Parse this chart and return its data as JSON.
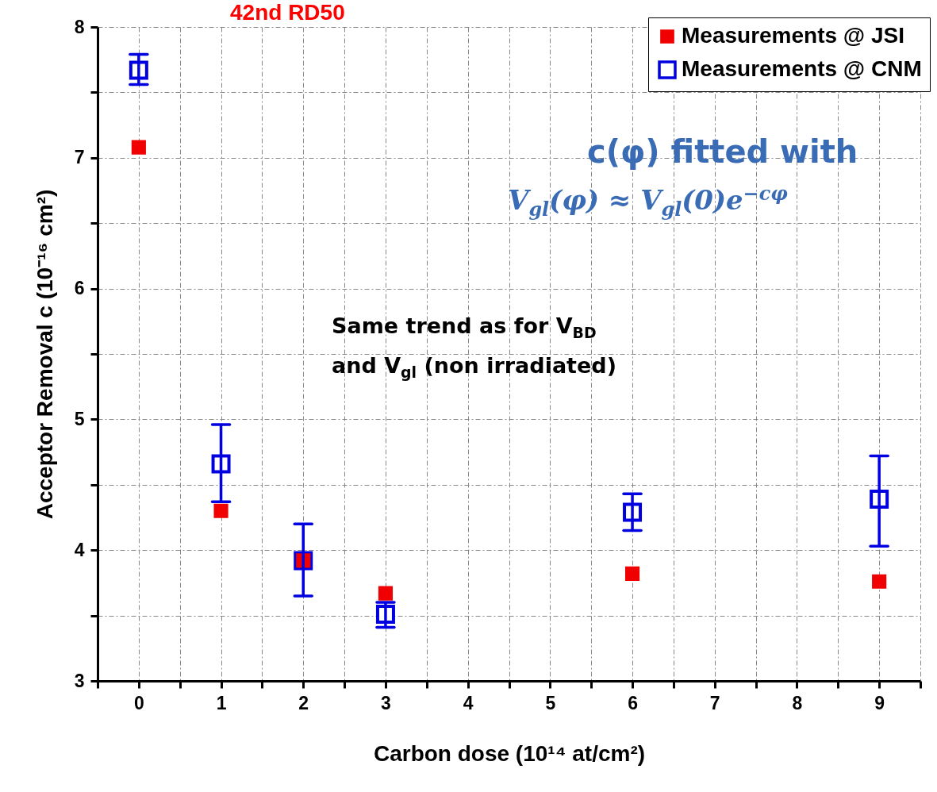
{
  "chart_data": {
    "type": "scatter",
    "xlabel": "Carbon dose (10¹⁴ at/cm²)",
    "ylabel": "Acceptor Removal c (10⁻¹⁶ cm²)",
    "x": [
      0,
      1,
      2,
      3,
      6,
      9
    ],
    "series": [
      {
        "name": "Measurements @ JSI",
        "color": "#f00000",
        "values": [
          7.08,
          4.3,
          3.92,
          3.67,
          3.82,
          3.76
        ]
      },
      {
        "name": "Measurements @ CNM",
        "color": "#0000e0",
        "values": [
          7.67,
          4.66,
          3.92,
          3.51,
          4.29,
          4.39
        ],
        "errors": [
          [
            7.56,
            7.79
          ],
          [
            4.37,
            4.96
          ],
          [
            3.65,
            4.2
          ],
          [
            3.41,
            3.6
          ],
          [
            4.15,
            4.43
          ],
          [
            4.03,
            4.72
          ]
        ]
      }
    ],
    "marker": "square",
    "xlim": [
      -0.5,
      9.5
    ],
    "xticks": [
      {
        "value": -0.5,
        "label": null
      },
      0,
      {
        "value": 0.5,
        "label": null
      },
      1,
      {
        "value": 1.5,
        "label": null
      },
      2,
      {
        "value": 2.5,
        "label": null
      },
      3,
      {
        "value": 3.5,
        "label": null
      },
      4,
      {
        "value": 4.5,
        "label": null
      },
      5,
      {
        "value": 5.5,
        "label": null
      },
      6,
      {
        "value": 6.5,
        "label": null
      },
      7,
      {
        "value": 7.5,
        "label": null
      },
      8,
      {
        "value": 8.5,
        "label": null
      },
      9,
      {
        "value": 9.5,
        "label": null
      }
    ],
    "ylim": [
      3,
      8
    ],
    "yticks": [
      3,
      {
        "value": 3.5,
        "label": null
      },
      4,
      {
        "value": 4.5,
        "label": null
      },
      5,
      {
        "value": 5.5,
        "label": null
      },
      6,
      {
        "value": 6.5,
        "label": null
      },
      7,
      {
        "value": 7.5,
        "label": null
      },
      8
    ],
    "grid": true,
    "legend": "top right",
    "annotations": [
      "42nd RD50",
      "c(φ) fitted with",
      "V$_{gl}$(φ) ≈ V$_{gl}$(0)e$^{−cφ}$",
      "Same trend as for V$_{BD}$",
      "and V$_{gl}$ (non irradiated)"
    ]
  }
}
